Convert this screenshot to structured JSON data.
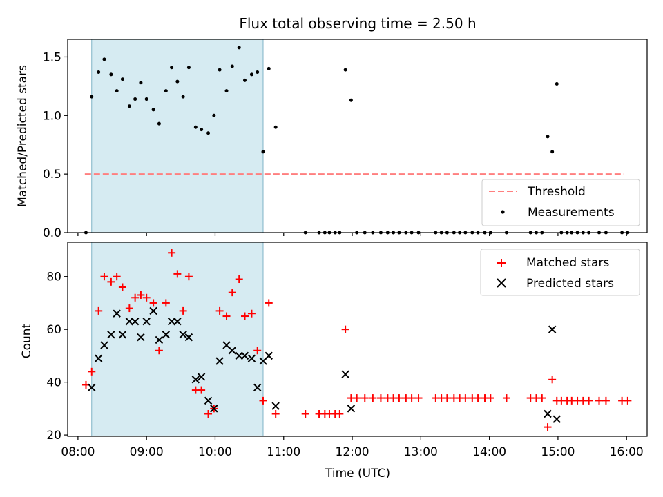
{
  "chart_data": [
    {
      "type": "scatter",
      "title": "Flux total observing time = 2.50 h",
      "xlabel": "",
      "ylabel": "Matched/Predicted stars",
      "xlim": [
        "07:51",
        "16:18"
      ],
      "ylim": [
        0,
        1.65
      ],
      "yticks": [
        "0.0",
        "0.5",
        "1.0",
        "1.5"
      ],
      "shaded_span": {
        "x": [
          "08:12",
          "10:42"
        ],
        "color": "#add8e6"
      },
      "threshold": {
        "name": "Threshold",
        "y": 0.5,
        "x": [
          "08:06",
          "15:58"
        ],
        "color": "#ff7f7f",
        "style": "dashed"
      },
      "legend": {
        "placement": "lower right",
        "entries": [
          "Threshold",
          "Measurements"
        ]
      },
      "series": [
        {
          "name": "Measurements",
          "color": "#000000",
          "marker": "dot",
          "x": [
            "08:07",
            "08:12",
            "08:18",
            "08:23",
            "08:29",
            "08:34",
            "08:39",
            "08:45",
            "08:50",
            "08:55",
            "09:00",
            "09:06",
            "09:11",
            "09:17",
            "09:22",
            "09:27",
            "09:32",
            "09:37",
            "09:43",
            "09:48",
            "09:54",
            "09:59",
            "10:04",
            "10:10",
            "10:15",
            "10:21",
            "10:26",
            "10:32",
            "10:37",
            "10:42",
            "10:47",
            "10:53",
            "11:19",
            "11:31",
            "11:36",
            "11:40",
            "11:45",
            "11:49",
            "11:54",
            "11:59",
            "12:04",
            "12:11",
            "12:18",
            "12:25",
            "12:31",
            "12:36",
            "12:41",
            "12:47",
            "12:52",
            "12:58",
            "13:13",
            "13:18",
            "13:23",
            "13:29",
            "13:34",
            "13:39",
            "13:45",
            "13:50",
            "13:56",
            "14:01",
            "14:15",
            "14:36",
            "14:41",
            "14:46",
            "14:51",
            "14:55",
            "14:59",
            "15:03",
            "15:08",
            "15:12",
            "15:17",
            "15:22",
            "15:27",
            "15:36",
            "15:42",
            "15:56",
            "16:01"
          ],
          "y": [
            0,
            1.16,
            1.37,
            1.48,
            1.35,
            1.21,
            1.31,
            1.08,
            1.14,
            1.28,
            1.14,
            1.05,
            0.93,
            1.21,
            1.41,
            1.29,
            1.16,
            1.41,
            0.9,
            0.88,
            0.85,
            1.0,
            1.39,
            1.21,
            1.42,
            1.58,
            1.3,
            1.35,
            1.37,
            0.69,
            1.4,
            0.9,
            0,
            0,
            0,
            0,
            0,
            0,
            1.39,
            1.13,
            0,
            0,
            0,
            0,
            0,
            0,
            0,
            0,
            0,
            0,
            0,
            0,
            0,
            0,
            0,
            0,
            0,
            0,
            0,
            0,
            0,
            0,
            0,
            0,
            0.82,
            0.69,
            1.27,
            0,
            0,
            0,
            0,
            0,
            0,
            0,
            0,
            0,
            0
          ]
        }
      ]
    },
    {
      "type": "scatter",
      "title": "",
      "xlabel": "Time (UTC)",
      "ylabel": "Count",
      "xlim": [
        "07:51",
        "16:18"
      ],
      "ylim": [
        19.5,
        93
      ],
      "yticks": [
        "20",
        "40",
        "60",
        "80"
      ],
      "xticks": [
        "08:00",
        "09:00",
        "10:00",
        "11:00",
        "12:00",
        "13:00",
        "14:00",
        "15:00",
        "16:00"
      ],
      "shaded_span": {
        "x": [
          "08:12",
          "10:42"
        ],
        "color": "#add8e6"
      },
      "legend": {
        "placement": "upper right",
        "entries": [
          "Matched stars",
          "Predicted stars"
        ]
      },
      "series": [
        {
          "name": "Matched stars",
          "color": "#ff0000",
          "marker": "plus",
          "x": [
            "08:07",
            "08:12",
            "08:18",
            "08:23",
            "08:29",
            "08:34",
            "08:39",
            "08:45",
            "08:50",
            "08:55",
            "09:00",
            "09:06",
            "09:11",
            "09:17",
            "09:22",
            "09:27",
            "09:32",
            "09:37",
            "09:43",
            "09:48",
            "09:54",
            "09:59",
            "10:04",
            "10:10",
            "10:15",
            "10:21",
            "10:26",
            "10:32",
            "10:37",
            "10:42",
            "10:47",
            "10:53",
            "11:19",
            "11:31",
            "11:36",
            "11:40",
            "11:45",
            "11:49",
            "11:54",
            "11:59",
            "12:04",
            "12:11",
            "12:18",
            "12:25",
            "12:31",
            "12:36",
            "12:41",
            "12:47",
            "12:52",
            "12:58",
            "13:13",
            "13:18",
            "13:23",
            "13:29",
            "13:34",
            "13:39",
            "13:45",
            "13:50",
            "13:56",
            "14:01",
            "14:15",
            "14:36",
            "14:41",
            "14:46",
            "14:51",
            "14:55",
            "14:59",
            "15:03",
            "15:08",
            "15:12",
            "15:17",
            "15:22",
            "15:27",
            "15:36",
            "15:42",
            "15:56",
            "16:01"
          ],
          "y": [
            39,
            44,
            67,
            80,
            78,
            80,
            76,
            68,
            72,
            73,
            72,
            70,
            52,
            70,
            89,
            81,
            67,
            80,
            37,
            37,
            28,
            30,
            67,
            65,
            74,
            79,
            65,
            66,
            52,
            33,
            70,
            28,
            28,
            28,
            28,
            28,
            28,
            28,
            60,
            34,
            34,
            34,
            34,
            34,
            34,
            34,
            34,
            34,
            34,
            34,
            34,
            34,
            34,
            34,
            34,
            34,
            34,
            34,
            34,
            34,
            34,
            34,
            34,
            34,
            23,
            41,
            33,
            33,
            33,
            33,
            33,
            33,
            33,
            33,
            33,
            33,
            33
          ]
        },
        {
          "name": "Predicted stars",
          "color": "#000000",
          "marker": "x",
          "x": [
            "08:12",
            "08:18",
            "08:23",
            "08:29",
            "08:34",
            "08:39",
            "08:45",
            "08:50",
            "08:55",
            "09:00",
            "09:06",
            "09:11",
            "09:17",
            "09:22",
            "09:27",
            "09:32",
            "09:37",
            "09:43",
            "09:48",
            "09:54",
            "09:59",
            "10:04",
            "10:10",
            "10:15",
            "10:21",
            "10:26",
            "10:32",
            "10:37",
            "10:42",
            "10:47",
            "10:53",
            "11:54",
            "11:59",
            "14:51",
            "14:55",
            "14:59"
          ],
          "y": [
            38,
            49,
            54,
            58,
            66,
            58,
            63,
            63,
            57,
            63,
            67,
            56,
            58,
            63,
            63,
            58,
            57,
            41,
            42,
            33,
            30,
            48,
            54,
            52,
            50,
            50,
            49,
            38,
            48,
            50,
            31,
            43,
            30,
            28,
            60,
            26
          ]
        }
      ]
    }
  ]
}
